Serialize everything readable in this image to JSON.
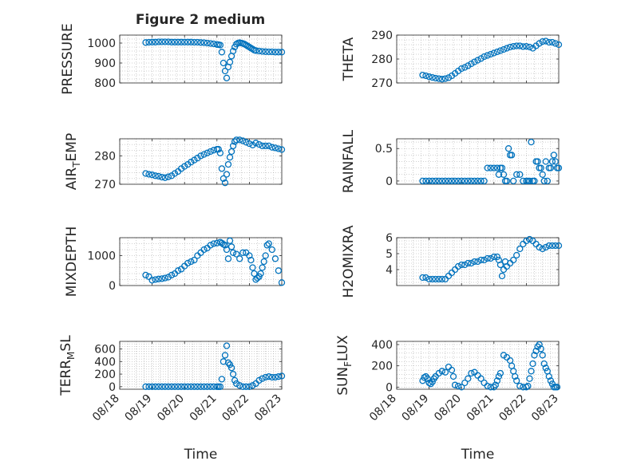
{
  "title": "Figure 2 medium",
  "colors": {
    "marker": "#0072BD",
    "axis": "#262626",
    "grid": "#a0a0a0"
  },
  "x_tick_labels": [
    "08/18",
    "08/19",
    "08/20",
    "08/21",
    "08/22",
    "08/23"
  ],
  "chart_data": [
    {
      "type": "scatter",
      "ylabel": "PRESSURE",
      "xlabel": "",
      "ylim": [
        800,
        1040
      ],
      "yticks": [
        800,
        900,
        1000
      ],
      "ytick_labels": [
        "800",
        "900",
        "1000"
      ],
      "series": [
        {
          "x": [
            0.8,
            0.9,
            1.0,
            1.1,
            1.2,
            1.3,
            1.4,
            1.5,
            1.6,
            1.7,
            1.8,
            1.9,
            2.0,
            2.1,
            2.2,
            2.3,
            2.4,
            2.5,
            2.6,
            2.7,
            2.8,
            2.9,
            3.0,
            3.05,
            3.1,
            3.15,
            3.2,
            3.25,
            3.3,
            3.35,
            3.4,
            3.45,
            3.5,
            3.55,
            3.6,
            3.65,
            3.7,
            3.75,
            3.8,
            3.85,
            3.9,
            3.95,
            4.0,
            4.05,
            4.1,
            4.15,
            4.2,
            4.3,
            4.4,
            4.5,
            4.6,
            4.7,
            4.8,
            4.9,
            5.0
          ],
          "y": [
            1003,
            1004,
            1005,
            1005,
            1006,
            1006,
            1006,
            1006,
            1005,
            1005,
            1005,
            1005,
            1005,
            1005,
            1005,
            1004,
            1004,
            1003,
            1002,
            1000,
            998,
            996,
            993,
            992,
            990,
            955,
            900,
            860,
            825,
            880,
            905,
            935,
            960,
            980,
            995,
            1000,
            1002,
            1000,
            998,
            995,
            990,
            985,
            980,
            975,
            970,
            965,
            962,
            960,
            958,
            957,
            956,
            956,
            955,
            955,
            955
          ]
        }
      ]
    },
    {
      "type": "scatter",
      "ylabel": "THETA",
      "xlabel": "",
      "ylim": [
        270,
        290
      ],
      "yticks": [
        270,
        280,
        290
      ],
      "ytick_labels": [
        "270",
        "280",
        "290"
      ],
      "series": [
        {
          "x": [
            0.8,
            0.9,
            1.0,
            1.1,
            1.2,
            1.3,
            1.4,
            1.5,
            1.6,
            1.7,
            1.8,
            1.9,
            2.0,
            2.1,
            2.2,
            2.3,
            2.4,
            2.5,
            2.6,
            2.7,
            2.8,
            2.9,
            3.0,
            3.1,
            3.2,
            3.3,
            3.4,
            3.5,
            3.6,
            3.7,
            3.8,
            3.9,
            4.0,
            4.1,
            4.2,
            4.3,
            4.4,
            4.5,
            4.6,
            4.7,
            4.8,
            4.9,
            5.0
          ],
          "y": [
            273.3,
            273,
            272.6,
            272.3,
            272,
            271.8,
            271.6,
            271.8,
            272.2,
            273,
            274,
            275,
            276,
            276.5,
            277.2,
            278,
            278.8,
            279.5,
            280.2,
            281,
            281.5,
            282,
            282.5,
            283,
            283.5,
            284,
            284.5,
            285,
            285.3,
            285.5,
            285.5,
            285.2,
            285.3,
            285,
            284.5,
            285.5,
            286.5,
            287.3,
            287.5,
            287,
            287,
            286.5,
            286
          ]
        }
      ]
    },
    {
      "type": "scatter",
      "ylabel": "AIR_TEMP",
      "xlabel": "",
      "ylim": [
        270,
        286
      ],
      "yticks": [
        270,
        280
      ],
      "ytick_labels": [
        "270",
        "280"
      ],
      "series": [
        {
          "x": [
            0.8,
            0.9,
            1.0,
            1.1,
            1.2,
            1.3,
            1.4,
            1.5,
            1.6,
            1.7,
            1.8,
            1.9,
            2.0,
            2.1,
            2.2,
            2.3,
            2.4,
            2.5,
            2.6,
            2.7,
            2.8,
            2.9,
            3.0,
            3.05,
            3.1,
            3.15,
            3.2,
            3.25,
            3.3,
            3.35,
            3.4,
            3.45,
            3.5,
            3.55,
            3.6,
            3.7,
            3.8,
            3.9,
            4.0,
            4.1,
            4.2,
            4.3,
            4.4,
            4.5,
            4.6,
            4.7,
            4.8,
            4.9,
            5.0
          ],
          "y": [
            273.8,
            273.5,
            273.3,
            273,
            272.8,
            272.5,
            272.3,
            272.6,
            273,
            273.8,
            274.5,
            275.5,
            276.3,
            277,
            277.8,
            278.5,
            279.2,
            280,
            280.5,
            281,
            281.5,
            282,
            282.3,
            282.3,
            281,
            275.5,
            272,
            270.5,
            273.5,
            277,
            279.5,
            281.5,
            283.5,
            285,
            285.6,
            285.6,
            285.3,
            284.8,
            284.3,
            283.8,
            284.5,
            284,
            283.5,
            283.5,
            283.5,
            283,
            282.8,
            282.5,
            282.2
          ]
        }
      ]
    },
    {
      "type": "scatter",
      "ylabel": "RAINFALL",
      "xlabel": "",
      "ylim": [
        -0.05,
        0.65
      ],
      "yticks": [
        0,
        0.5
      ],
      "ytick_labels": [
        "0",
        "0.5"
      ],
      "series": [
        {
          "x": [
            0.8,
            0.9,
            1.0,
            1.1,
            1.2,
            1.3,
            1.4,
            1.5,
            1.6,
            1.7,
            1.8,
            1.9,
            2.0,
            2.1,
            2.2,
            2.3,
            2.4,
            2.5,
            2.6,
            2.7,
            2.8,
            2.9,
            3.0,
            3.1,
            3.15,
            3.2,
            3.25,
            3.3,
            3.35,
            3.4,
            3.45,
            3.5,
            3.55,
            3.6,
            3.7,
            3.8,
            3.9,
            4.0,
            4.05,
            4.1,
            4.15,
            4.2,
            4.25,
            4.3,
            4.35,
            4.4,
            4.45,
            4.5,
            4.55,
            4.6,
            4.65,
            4.7,
            4.75,
            4.8,
            4.85,
            4.9,
            4.95,
            5.0
          ],
          "y": [
            0,
            0,
            0,
            0,
            0,
            0,
            0,
            0,
            0,
            0,
            0,
            0,
            0,
            0,
            0,
            0,
            0,
            0,
            0,
            0,
            0.2,
            0.2,
            0.2,
            0.2,
            0.1,
            0.2,
            0.2,
            0.1,
            0,
            0,
            0.5,
            0.4,
            0.4,
            0,
            0.1,
            0.1,
            0,
            0,
            0,
            0,
            0.6,
            0,
            0,
            0.3,
            0.3,
            0.2,
            0.2,
            0.1,
            0,
            0.3,
            0,
            0.2,
            0.2,
            0.3,
            0.4,
            0.3,
            0.2,
            0.2
          ]
        }
      ]
    },
    {
      "type": "scatter",
      "ylabel": "MIXDEPTH",
      "xlabel": "",
      "ylim": [
        0,
        1600
      ],
      "yticks": [
        0,
        1000
      ],
      "ytick_labels": [
        "0",
        "1000"
      ],
      "series": [
        {
          "x": [
            0.8,
            0.9,
            1.0,
            1.1,
            1.2,
            1.3,
            1.4,
            1.5,
            1.6,
            1.7,
            1.8,
            1.9,
            2.0,
            2.1,
            2.2,
            2.3,
            2.4,
            2.5,
            2.6,
            2.7,
            2.8,
            2.9,
            3.0,
            3.1,
            3.15,
            3.2,
            3.25,
            3.3,
            3.35,
            3.4,
            3.45,
            3.5,
            3.6,
            3.7,
            3.8,
            3.9,
            4.0,
            4.05,
            4.1,
            4.15,
            4.2,
            4.25,
            4.3,
            4.35,
            4.4,
            4.45,
            4.5,
            4.55,
            4.6,
            4.7,
            4.8,
            4.9,
            5.0
          ],
          "y": [
            350,
            300,
            180,
            200,
            220,
            230,
            250,
            280,
            350,
            400,
            500,
            550,
            650,
            750,
            800,
            850,
            1000,
            1100,
            1200,
            1250,
            1350,
            1400,
            1420,
            1450,
            1420,
            1380,
            1350,
            1200,
            900,
            1500,
            1300,
            1100,
            1050,
            900,
            1100,
            1100,
            1000,
            850,
            600,
            400,
            200,
            250,
            300,
            400,
            600,
            800,
            1000,
            1350,
            1400,
            1200,
            900,
            500,
            100
          ]
        }
      ]
    },
    {
      "type": "scatter",
      "ylabel": "H2OMIXRA",
      "xlabel": "",
      "ylim": [
        3,
        6
      ],
      "yticks": [
        4,
        5,
        6
      ],
      "ytick_labels": [
        "4",
        "5",
        "6"
      ],
      "series": [
        {
          "x": [
            0.8,
            0.9,
            1.0,
            1.1,
            1.2,
            1.3,
            1.4,
            1.5,
            1.6,
            1.7,
            1.8,
            1.9,
            2.0,
            2.1,
            2.2,
            2.3,
            2.4,
            2.5,
            2.6,
            2.7,
            2.8,
            2.9,
            3.0,
            3.1,
            3.15,
            3.2,
            3.25,
            3.3,
            3.35,
            3.4,
            3.5,
            3.6,
            3.7,
            3.8,
            3.9,
            4.0,
            4.1,
            4.2,
            4.3,
            4.4,
            4.5,
            4.6,
            4.7,
            4.8,
            4.9,
            5.0
          ],
          "y": [
            3.5,
            3.5,
            3.4,
            3.4,
            3.4,
            3.4,
            3.4,
            3.4,
            3.6,
            3.8,
            4.0,
            4.2,
            4.3,
            4.3,
            4.4,
            4.4,
            4.5,
            4.5,
            4.6,
            4.6,
            4.7,
            4.7,
            4.8,
            4.8,
            4.6,
            4.3,
            3.6,
            4.0,
            4.5,
            4.2,
            4.4,
            4.6,
            4.9,
            5.3,
            5.6,
            5.8,
            5.9,
            5.8,
            5.6,
            5.4,
            5.3,
            5.4,
            5.5,
            5.5,
            5.5,
            5.5
          ]
        }
      ]
    },
    {
      "type": "scatter",
      "ylabel": "TERR_MSL",
      "xlabel": "Time",
      "ylim": [
        -40,
        720
      ],
      "yticks": [
        0,
        200,
        400,
        600
      ],
      "ytick_labels": [
        "0",
        "200",
        "400",
        "600"
      ],
      "series": [
        {
          "x": [
            0.8,
            0.9,
            1.0,
            1.1,
            1.2,
            1.3,
            1.4,
            1.5,
            1.6,
            1.7,
            1.8,
            1.9,
            2.0,
            2.1,
            2.2,
            2.3,
            2.4,
            2.5,
            2.6,
            2.7,
            2.8,
            2.9,
            3.0,
            3.05,
            3.1,
            3.15,
            3.2,
            3.25,
            3.3,
            3.35,
            3.4,
            3.45,
            3.5,
            3.55,
            3.6,
            3.7,
            3.8,
            3.9,
            4.0,
            4.1,
            4.2,
            4.3,
            4.4,
            4.5,
            4.6,
            4.7,
            4.8,
            4.9,
            5.0
          ],
          "y": [
            0,
            0,
            0,
            0,
            0,
            0,
            0,
            0,
            0,
            0,
            0,
            0,
            0,
            0,
            0,
            0,
            0,
            0,
            0,
            0,
            0,
            0,
            0,
            0,
            0,
            120,
            400,
            500,
            650,
            380,
            350,
            300,
            200,
            100,
            50,
            20,
            0,
            0,
            0,
            20,
            50,
            100,
            130,
            150,
            160,
            150,
            150,
            160,
            170
          ]
        }
      ]
    },
    {
      "type": "scatter",
      "ylabel": "SUN_FLUX",
      "xlabel": "Time",
      "ylim": [
        -20,
        430
      ],
      "yticks": [
        0,
        200,
        400
      ],
      "ytick_labels": [
        "0",
        "200",
        "400"
      ],
      "series": [
        {
          "x": [
            0.8,
            0.85,
            0.9,
            0.95,
            1.0,
            1.05,
            1.1,
            1.15,
            1.2,
            1.3,
            1.4,
            1.5,
            1.6,
            1.7,
            1.75,
            1.8,
            1.9,
            2.0,
            2.1,
            2.2,
            2.3,
            2.4,
            2.5,
            2.6,
            2.7,
            2.8,
            2.9,
            3.0,
            3.05,
            3.1,
            3.15,
            3.2,
            3.3,
            3.4,
            3.5,
            3.55,
            3.6,
            3.65,
            3.7,
            3.8,
            3.9,
            4.0,
            4.05,
            4.1,
            4.15,
            4.2,
            4.25,
            4.3,
            4.35,
            4.4,
            4.45,
            4.5,
            4.55,
            4.6,
            4.65,
            4.7,
            4.75,
            4.8,
            4.85,
            4.9,
            4.95
          ],
          "y": [
            60,
            90,
            100,
            80,
            40,
            30,
            50,
            80,
            100,
            130,
            150,
            140,
            190,
            160,
            100,
            20,
            10,
            0,
            40,
            80,
            130,
            140,
            110,
            80,
            40,
            10,
            0,
            0,
            20,
            60,
            100,
            130,
            300,
            280,
            250,
            200,
            150,
            100,
            60,
            10,
            0,
            0,
            10,
            80,
            150,
            220,
            300,
            340,
            380,
            400,
            360,
            300,
            220,
            180,
            150,
            100,
            60,
            30,
            0,
            0,
            0
          ]
        }
      ]
    }
  ]
}
